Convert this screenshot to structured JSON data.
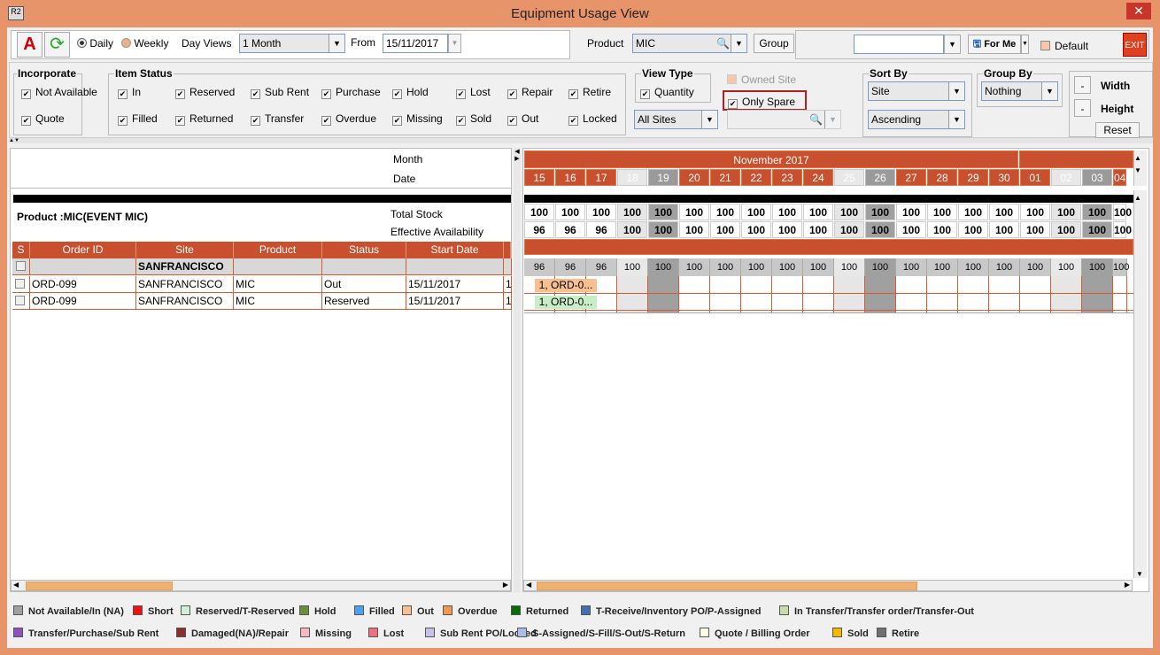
{
  "window": {
    "title": "Equipment Usage View",
    "app_icon": "R2"
  },
  "toolbar": {
    "daily": "Daily",
    "weekly": "Weekly",
    "day_views_label": "Day Views",
    "day_views_value": "1 Month",
    "from_label": "From",
    "from_value": "15/11/2017",
    "product_label": "Product",
    "product_value": "MIC",
    "group_button": "Group",
    "preset_value": "",
    "for_me": "For Me",
    "default_label": "Default",
    "exit": "EXIT"
  },
  "filters": {
    "incorporate": {
      "title": "Incorporate",
      "items": [
        "Not Available",
        "Quote"
      ]
    },
    "item_status": {
      "title": "Item Status",
      "items": [
        "In",
        "Reserved",
        "Sub Rent",
        "Purchase",
        "Hold",
        "Lost",
        "Repair",
        "Retire",
        "Filled",
        "Returned",
        "Transfer",
        "Overdue",
        "Missing",
        "Sold",
        "Out",
        "Locked"
      ]
    },
    "view_type": {
      "title": "View Type",
      "quantity": "Quantity",
      "sites": "All Sites"
    },
    "owned_site": "Owned Site",
    "only_spare": "Only Spare",
    "sort_by": {
      "title": "Sort By",
      "field": "Site",
      "order": "Ascending"
    },
    "group_by": {
      "title": "Group By",
      "value": "Nothing"
    },
    "size": {
      "minus": "-",
      "width": "Width",
      "height": "Height",
      "reset": "Reset"
    }
  },
  "left": {
    "month_label": "Month",
    "date_label": "Date",
    "product_label": "Product :MIC(EVENT MIC)",
    "total_stock": "Total Stock",
    "effective_availability": "Effective Availability",
    "columns": [
      "S",
      "Order ID",
      "Site",
      "Product",
      "Status",
      "Start Date"
    ],
    "group_row": "SANFRANCISCO",
    "rows": [
      [
        "ORD-099",
        "SANFRANCISCO",
        "MIC",
        "Out",
        "15/11/2017",
        "1"
      ],
      [
        "ORD-099",
        "SANFRANCISCO",
        "MIC",
        "Reserved",
        "15/11/2017",
        "1"
      ]
    ]
  },
  "calendar": {
    "month": "November 2017",
    "days": [
      {
        "d": "15",
        "t": "w"
      },
      {
        "d": "16",
        "t": "w"
      },
      {
        "d": "17",
        "t": "w"
      },
      {
        "d": "18",
        "t": "we"
      },
      {
        "d": "19",
        "t": "gr"
      },
      {
        "d": "20",
        "t": "w"
      },
      {
        "d": "21",
        "t": "w"
      },
      {
        "d": "22",
        "t": "w"
      },
      {
        "d": "23",
        "t": "w"
      },
      {
        "d": "24",
        "t": "w"
      },
      {
        "d": "25",
        "t": "we"
      },
      {
        "d": "26",
        "t": "gr"
      },
      {
        "d": "27",
        "t": "w"
      },
      {
        "d": "28",
        "t": "w"
      },
      {
        "d": "29",
        "t": "w"
      },
      {
        "d": "30",
        "t": "w"
      },
      {
        "d": "01",
        "t": "w"
      },
      {
        "d": "02",
        "t": "we"
      },
      {
        "d": "03",
        "t": "gr"
      },
      {
        "d": "04",
        "t": "w"
      }
    ],
    "total_stock": [
      "100",
      "100",
      "100",
      "100",
      "100",
      "100",
      "100",
      "100",
      "100",
      "100",
      "100",
      "100",
      "100",
      "100",
      "100",
      "100",
      "100",
      "100",
      "100",
      "100"
    ],
    "effective": [
      "96",
      "96",
      "96",
      "100",
      "100",
      "100",
      "100",
      "100",
      "100",
      "100",
      "100",
      "100",
      "100",
      "100",
      "100",
      "100",
      "100",
      "100",
      "100",
      "100"
    ],
    "site_row": [
      "96",
      "96",
      "96",
      "100",
      "100",
      "100",
      "100",
      "100",
      "100",
      "100",
      "100",
      "100",
      "100",
      "100",
      "100",
      "100",
      "100",
      "100",
      "100",
      "100"
    ],
    "bookings": [
      {
        "label": "1, ORD-0...",
        "color": "#F8C090"
      },
      {
        "label": "1, ORD-0...",
        "color": "#C8EEC8"
      }
    ]
  },
  "legend": [
    {
      "label": "Not Available/In (NA)",
      "color": "#A0A0A0"
    },
    {
      "label": "Short",
      "color": "#F01010"
    },
    {
      "label": "Reserved/T-Reserved",
      "color": "#D0F0D8"
    },
    {
      "label": "Hold",
      "color": "#6B8E3A"
    },
    {
      "label": "Filled",
      "color": "#4DA0F0"
    },
    {
      "label": "Out",
      "color": "#F8C090"
    },
    {
      "label": "Overdue",
      "color": "#F89850"
    },
    {
      "label": "Returned",
      "color": "#007000"
    },
    {
      "label": "T-Receive/Inventory PO/P-Assigned",
      "color": "#4070B0"
    },
    {
      "label": "In Transfer/Transfer order/Transfer-Out",
      "color": "#C8DCA8"
    },
    {
      "label": "Transfer/Purchase/Sub Rent",
      "color": "#9050C0"
    },
    {
      "label": "Damaged(NA)/Repair",
      "color": "#8B2E2E"
    },
    {
      "label": "Missing",
      "color": "#F8B8C0"
    },
    {
      "label": "Lost",
      "color": "#F07080"
    },
    {
      "label": "Sub Rent PO/Locked",
      "color": "#C8C0E8"
    },
    {
      "label": "S-Assigned/S-Fill/S-Out/S-Return",
      "color": "#A8C0E8"
    },
    {
      "label": "Quote / Billing Order",
      "color": "#FFFBE0"
    },
    {
      "label": "Sold",
      "color": "#F8B800"
    },
    {
      "label": "Retire",
      "color": "#707070"
    }
  ]
}
